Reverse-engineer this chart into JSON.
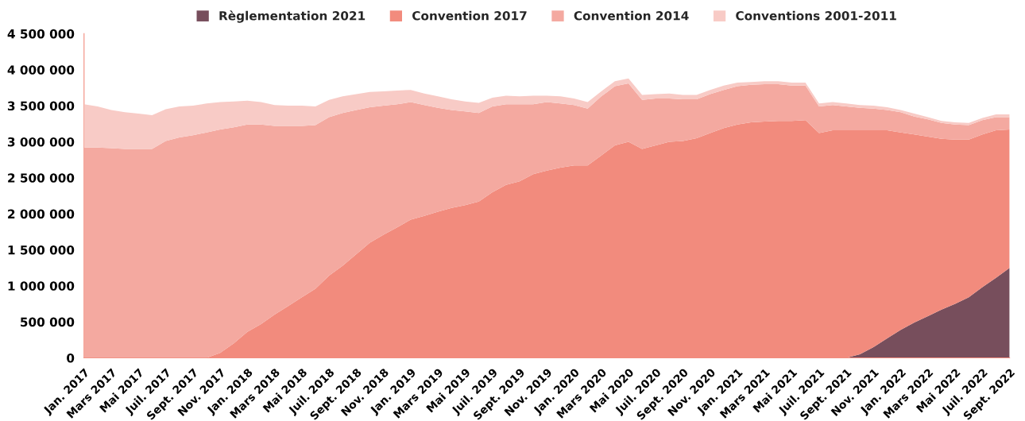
{
  "chart_data": {
    "type": "area",
    "stacked": true,
    "legend": "top",
    "categories": [
      "Jan. 2017",
      null,
      "Mars 2017",
      null,
      "Mai 2017",
      null,
      "Juil. 2017",
      null,
      "Sept. 2017",
      null,
      "Nov. 2017",
      null,
      "Jan. 2018",
      null,
      "Mars 2018",
      null,
      "Mai 2018",
      null,
      "Juil. 2018",
      null,
      "Sept. 2018",
      null,
      "Nov. 2018",
      null,
      "Jan. 2019",
      null,
      "Mars 2019",
      null,
      "Mai 2019",
      null,
      "Juil. 2019",
      null,
      "Sept. 2019",
      null,
      "Nov. 2019",
      null,
      "Jan. 2020",
      null,
      "Mars 2020",
      null,
      "Mai 2020",
      null,
      "Juil. 2020",
      null,
      "Sept. 2020",
      null,
      "Nov. 2020",
      null,
      "Jan. 2021",
      null,
      "Mars 2021",
      null,
      "Mai 2021",
      null,
      "Juil. 2021",
      null,
      "Sept. 2021",
      null,
      "Nov. 2021",
      null,
      "Jan. 2022",
      null,
      "Mars 2022",
      null,
      "Mai 2022",
      null,
      "Juil. 2022",
      null,
      "Sept. 2022"
    ],
    "ylim": [
      0,
      4500000
    ],
    "yticks": [
      {
        "value": 0,
        "label": "0"
      },
      {
        "value": 500000,
        "label": "500 000"
      },
      {
        "value": 1000000,
        "label": "1 000 000"
      },
      {
        "value": 1500000,
        "label": "1 500 000"
      },
      {
        "value": 2000000,
        "label": "2 000 000"
      },
      {
        "value": 2500000,
        "label": "2 500 000"
      },
      {
        "value": 3000000,
        "label": "3 000 000"
      },
      {
        "value": 3500000,
        "label": "3 500 000"
      },
      {
        "value": 4000000,
        "label": "4 000 000"
      },
      {
        "value": 4500000,
        "label": "4 500 000"
      }
    ],
    "series": [
      {
        "name": "Règlementation 2021",
        "color": "#774e5c",
        "values": [
          0,
          0,
          0,
          0,
          0,
          0,
          0,
          0,
          0,
          0,
          0,
          0,
          0,
          0,
          0,
          0,
          0,
          0,
          0,
          0,
          0,
          0,
          0,
          0,
          0,
          0,
          0,
          0,
          0,
          0,
          0,
          0,
          0,
          0,
          0,
          0,
          0,
          0,
          0,
          0,
          0,
          0,
          0,
          0,
          0,
          0,
          0,
          0,
          0,
          0,
          0,
          0,
          0,
          0,
          0,
          0,
          0,
          50000,
          150000,
          270000,
          390000,
          490000,
          580000,
          670000,
          750000,
          840000,
          980000,
          1110000,
          1250000
        ]
      },
      {
        "name": "Convention 2017",
        "color": "#f28b7d",
        "values": [
          0,
          0,
          0,
          0,
          0,
          0,
          0,
          0,
          0,
          0,
          70000,
          200000,
          360000,
          470000,
          600000,
          720000,
          840000,
          960000,
          1140000,
          1280000,
          1440000,
          1600000,
          1710000,
          1810000,
          1920000,
          1970000,
          2030000,
          2080000,
          2120000,
          2170000,
          2300000,
          2400000,
          2450000,
          2550000,
          2600000,
          2640000,
          2670000,
          2670000,
          2810000,
          2950000,
          3000000,
          2900000,
          2950000,
          3000000,
          3010000,
          3050000,
          3120000,
          3190000,
          3240000,
          3270000,
          3280000,
          3290000,
          3290000,
          3300000,
          3120000,
          3160000,
          3160000,
          3110000,
          3010000,
          2890000,
          2740000,
          2610000,
          2490000,
          2370000,
          2280000,
          2190000,
          2120000,
          2050000,
          1920000
        ]
      },
      {
        "name": "Convention 2014",
        "color": "#f4a9a0",
        "values": [
          2920000,
          2920000,
          2910000,
          2900000,
          2900000,
          2900000,
          3010000,
          3060000,
          3090000,
          3130000,
          3100000,
          3000000,
          2880000,
          2770000,
          2620000,
          2500000,
          2380000,
          2270000,
          2200000,
          2120000,
          2000000,
          1880000,
          1790000,
          1710000,
          1630000,
          1540000,
          1440000,
          1360000,
          1300000,
          1230000,
          1190000,
          1120000,
          1070000,
          970000,
          950000,
          890000,
          840000,
          790000,
          820000,
          820000,
          810000,
          680000,
          650000,
          600000,
          580000,
          540000,
          540000,
          530000,
          530000,
          520000,
          520000,
          510000,
          490000,
          480000,
          370000,
          350000,
          330000,
          310000,
          300000,
          280000,
          280000,
          250000,
          240000,
          220000,
          210000,
          200000,
          200000,
          180000,
          170000
        ]
      },
      {
        "name": "Conventions 2001-2011",
        "color": "#f8cbc6",
        "values": [
          600000,
          570000,
          530000,
          510000,
          490000,
          470000,
          440000,
          430000,
          410000,
          400000,
          380000,
          360000,
          330000,
          310000,
          290000,
          280000,
          280000,
          260000,
          240000,
          230000,
          220000,
          210000,
          200000,
          190000,
          170000,
          160000,
          160000,
          150000,
          140000,
          140000,
          120000,
          120000,
          110000,
          120000,
          90000,
          100000,
          90000,
          90000,
          70000,
          70000,
          70000,
          70000,
          60000,
          70000,
          60000,
          60000,
          60000,
          60000,
          50000,
          40000,
          40000,
          40000,
          40000,
          40000,
          40000,
          40000,
          40000,
          40000,
          40000,
          40000,
          30000,
          40000,
          30000,
          30000,
          30000,
          30000,
          30000,
          40000,
          40000
        ]
      }
    ]
  }
}
